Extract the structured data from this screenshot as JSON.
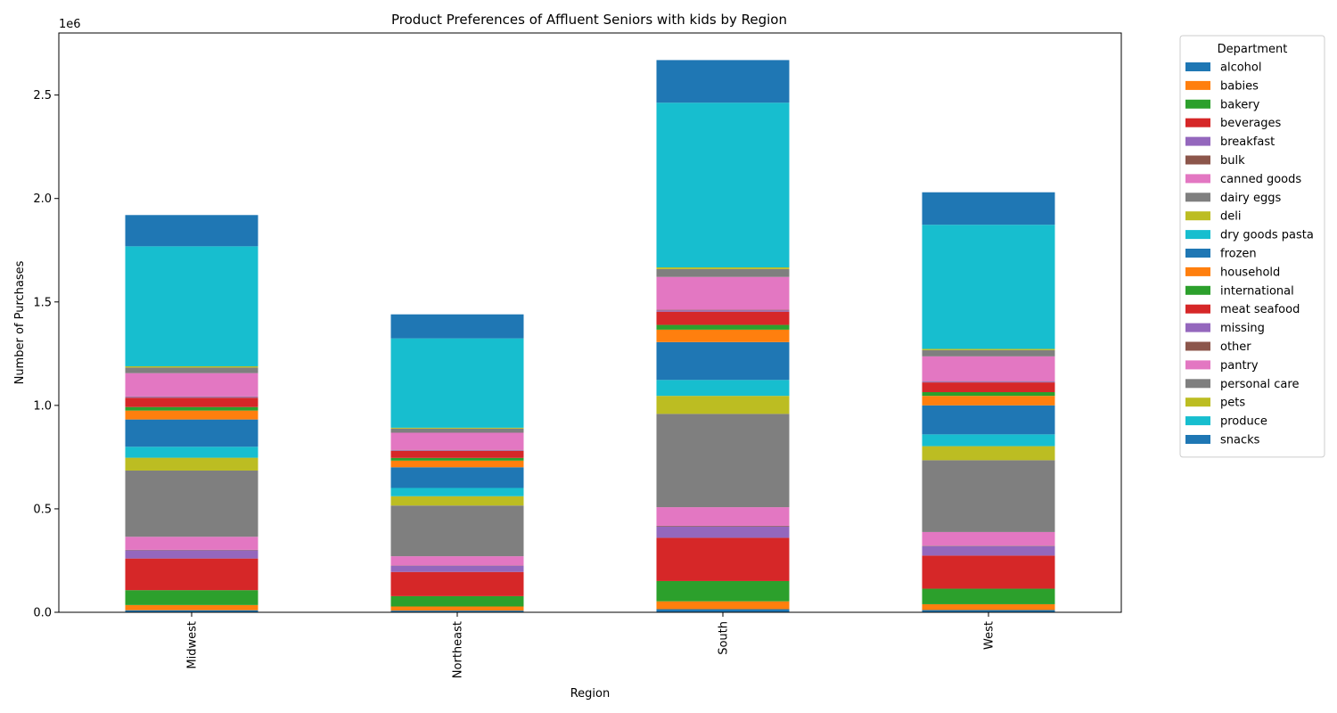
{
  "chart_data": {
    "type": "bar",
    "stacked": true,
    "title": "Product Preferences of Affluent Seniors with kids by Region",
    "xlabel": "Region",
    "ylabel": "Number of Purchases",
    "y_multiplier_label": "1e6",
    "ylim": [
      0,
      2.8
    ],
    "yticks": [
      0.0,
      0.5,
      1.0,
      1.5,
      2.0,
      2.5
    ],
    "ytick_labels": [
      "0.0",
      "0.5",
      "1.0",
      "1.5",
      "2.0",
      "2.5"
    ],
    "categories": [
      "Midwest",
      "Northeast",
      "South",
      "West"
    ],
    "legend_title": "Department",
    "legend_position": "outside-right",
    "series": [
      {
        "name": "alcohol",
        "color": "#1f77b4",
        "values": [
          0.01,
          0.008,
          0.015,
          0.011
        ]
      },
      {
        "name": "babies",
        "color": "#ff7f0e",
        "values": [
          0.025,
          0.02,
          0.038,
          0.028
        ]
      },
      {
        "name": "bakery",
        "color": "#2ca02c",
        "values": [
          0.072,
          0.05,
          0.098,
          0.075
        ]
      },
      {
        "name": "beverages",
        "color": "#d62728",
        "values": [
          0.153,
          0.117,
          0.209,
          0.16
        ]
      },
      {
        "name": "breakfast",
        "color": "#9467bd",
        "values": [
          0.04,
          0.03,
          0.055,
          0.046
        ]
      },
      {
        "name": "bulk",
        "color": "#8c564b",
        "values": [
          0.002,
          0.001,
          0.003,
          0.002
        ]
      },
      {
        "name": "canned goods",
        "color": "#e377c2",
        "values": [
          0.063,
          0.045,
          0.09,
          0.066
        ]
      },
      {
        "name": "dairy eggs",
        "color": "#7f7f7f",
        "values": [
          0.32,
          0.245,
          0.451,
          0.347
        ]
      },
      {
        "name": "deli",
        "color": "#bcbd22",
        "values": [
          0.062,
          0.045,
          0.087,
          0.068
        ]
      },
      {
        "name": "dry goods pasta",
        "color": "#17becf",
        "values": [
          0.053,
          0.04,
          0.077,
          0.057
        ]
      },
      {
        "name": "frozen",
        "color": "#1f77b4",
        "values": [
          0.132,
          0.1,
          0.183,
          0.14
        ]
      },
      {
        "name": "household",
        "color": "#ff7f0e",
        "values": [
          0.043,
          0.032,
          0.06,
          0.046
        ]
      },
      {
        "name": "international",
        "color": "#2ca02c",
        "values": [
          0.017,
          0.013,
          0.023,
          0.018
        ]
      },
      {
        "name": "meat seafood",
        "color": "#d62728",
        "values": [
          0.045,
          0.034,
          0.064,
          0.047
        ]
      },
      {
        "name": "missing",
        "color": "#9467bd",
        "values": [
          0.004,
          0.003,
          0.006,
          0.004
        ]
      },
      {
        "name": "other",
        "color": "#8c564b",
        "values": [
          0.002,
          0.002,
          0.003,
          0.002
        ]
      },
      {
        "name": "pantry",
        "color": "#e377c2",
        "values": [
          0.113,
          0.083,
          0.159,
          0.12
        ]
      },
      {
        "name": "personal care",
        "color": "#7f7f7f",
        "values": [
          0.027,
          0.02,
          0.038,
          0.03
        ]
      },
      {
        "name": "pets",
        "color": "#bcbd22",
        "values": [
          0.006,
          0.004,
          0.008,
          0.006
        ]
      },
      {
        "name": "produce",
        "color": "#17becf",
        "values": [
          0.58,
          0.432,
          0.796,
          0.6
        ]
      },
      {
        "name": "snacks",
        "color": "#1f77b4",
        "values": [
          0.151,
          0.116,
          0.206,
          0.157
        ]
      }
    ]
  }
}
